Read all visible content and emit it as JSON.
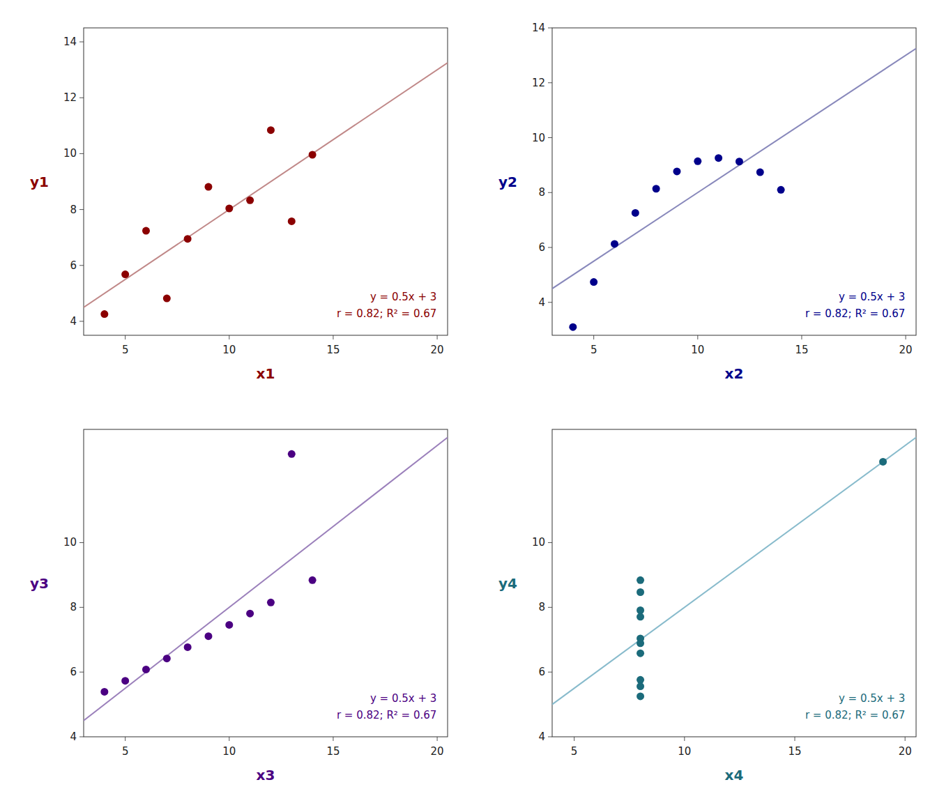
{
  "chart_data": [
    {
      "type": "scatter",
      "x_label": "x1",
      "y_label": "y1",
      "annotation": "y = 0.5x + 3\nr = 0.82; R² = 0.67",
      "series": [
        {
          "type": "scatter",
          "color": "#8B0000",
          "x": [
            10,
            8,
            13,
            9,
            11,
            14,
            6,
            4,
            12,
            7,
            5
          ],
          "values": [
            8.04,
            6.95,
            7.58,
            8.81,
            8.33,
            9.96,
            7.24,
            4.26,
            10.84,
            4.82,
            5.68
          ]
        },
        {
          "type": "line",
          "color": "#C08888",
          "x": [
            3,
            20.5
          ],
          "values": [
            4.5,
            13.25
          ]
        }
      ],
      "xlim": [
        3,
        20.5
      ],
      "ylim": [
        3.5,
        14.5
      ],
      "xticks": [
        5,
        10,
        15,
        20
      ],
      "yticks": [
        4,
        6,
        8,
        10,
        12,
        14
      ]
    },
    {
      "type": "scatter",
      "x_label": "x2",
      "y_label": "y2",
      "annotation": "y = 0.5x + 3\nr = 0.82; R² = 0.67",
      "series": [
        {
          "type": "scatter",
          "color": "#00008B",
          "x": [
            10,
            8,
            13,
            9,
            11,
            14,
            6,
            4,
            12,
            7,
            5
          ],
          "values": [
            9.14,
            8.14,
            8.74,
            8.77,
            9.26,
            8.1,
            6.13,
            3.1,
            9.13,
            7.26,
            4.74
          ]
        },
        {
          "type": "line",
          "color": "#8888BB",
          "x": [
            3,
            20.5
          ],
          "values": [
            4.5,
            13.25
          ]
        }
      ],
      "xlim": [
        3,
        20.5
      ],
      "ylim": [
        2.8,
        14
      ],
      "xticks": [
        5,
        10,
        15,
        20
      ],
      "yticks": [
        4,
        6,
        8,
        10,
        12,
        14
      ]
    },
    {
      "type": "scatter",
      "x_label": "x3",
      "y_label": "y3",
      "annotation": "y = 0.5x + 3\nr = 0.82; R² = 0.67",
      "series": [
        {
          "type": "scatter",
          "color": "#4B0082",
          "x": [
            10,
            8,
            13,
            9,
            11,
            14,
            6,
            4,
            12,
            7,
            5
          ],
          "values": [
            7.46,
            6.77,
            12.74,
            7.11,
            7.81,
            8.84,
            6.08,
            5.39,
            8.15,
            6.42,
            5.73
          ]
        },
        {
          "type": "line",
          "color": "#9B80BB",
          "x": [
            3,
            20.5
          ],
          "values": [
            4.5,
            13.25
          ]
        }
      ],
      "xlim": [
        3,
        20.5
      ],
      "ylim": [
        4,
        13.5
      ],
      "xticks": [
        5,
        10,
        15,
        20
      ],
      "yticks": [
        4,
        6,
        8,
        10
      ]
    },
    {
      "type": "scatter",
      "x_label": "x4",
      "y_label": "y4",
      "annotation": "y = 0.5x + 3\nr = 0.82; R² = 0.67",
      "series": [
        {
          "type": "scatter",
          "color": "#1B6B7B",
          "x": [
            8,
            8,
            8,
            8,
            8,
            8,
            8,
            19,
            8,
            8,
            8
          ],
          "values": [
            6.58,
            5.76,
            7.71,
            8.84,
            8.47,
            7.04,
            5.25,
            12.5,
            5.56,
            7.91,
            6.89
          ]
        },
        {
          "type": "line",
          "color": "#88BBCC",
          "x": [
            4,
            20.5
          ],
          "values": [
            5,
            13.25
          ]
        }
      ],
      "xlim": [
        4,
        20.5
      ],
      "ylim": [
        4,
        13.5
      ],
      "xticks": [
        5,
        10,
        15,
        20
      ],
      "yticks": [
        4,
        6,
        8,
        10
      ]
    }
  ]
}
